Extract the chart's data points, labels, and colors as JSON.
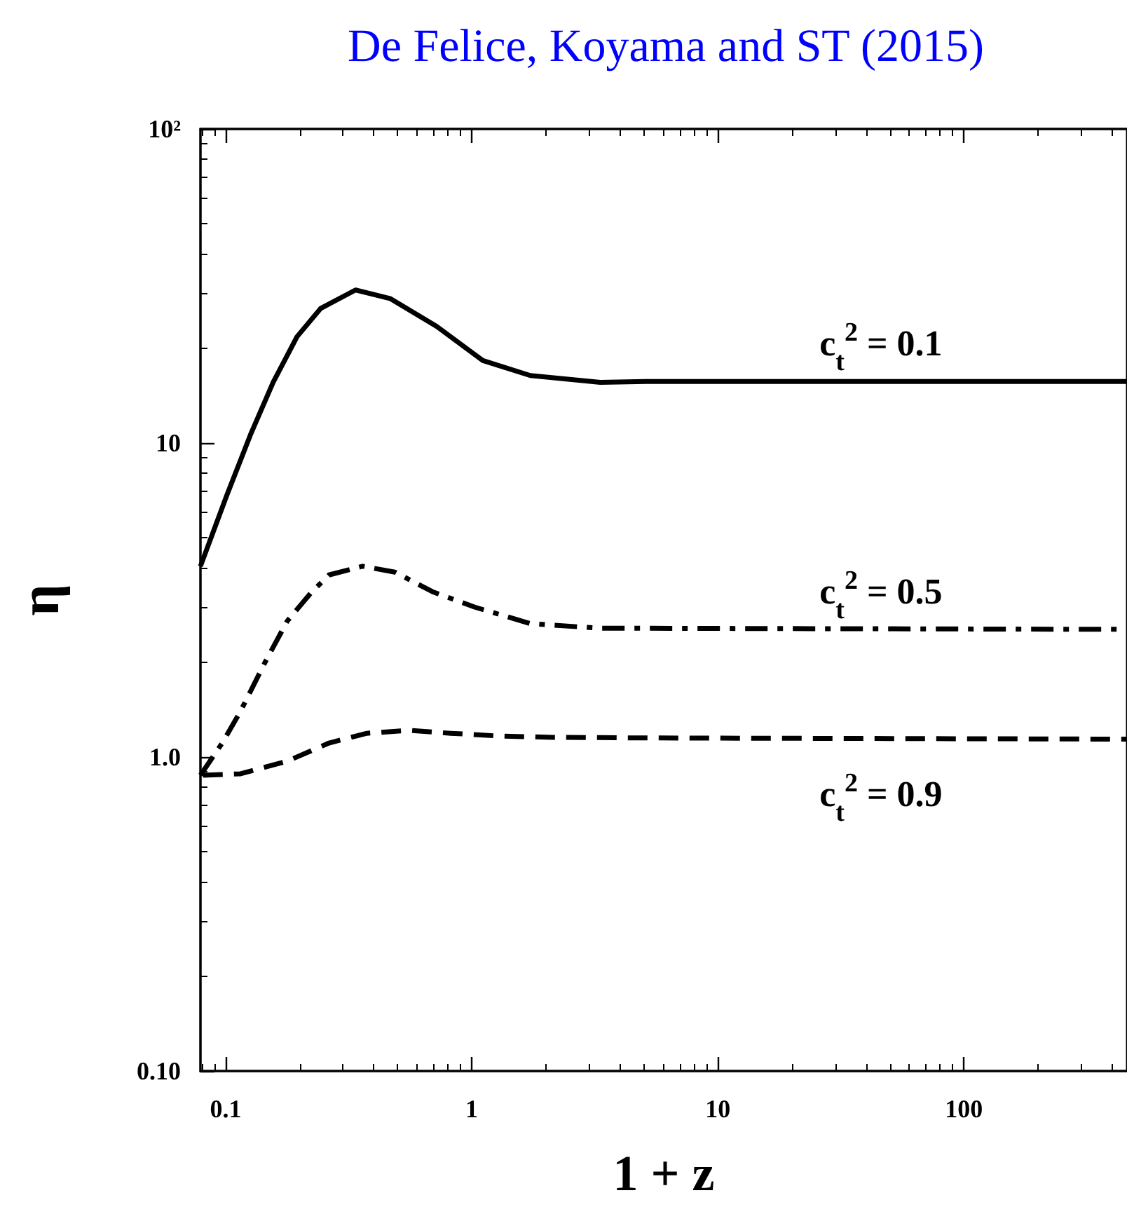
{
  "chart_data": {
    "type": "line",
    "title": "De Felice, Koyama and ST (2015)",
    "xlabel": "1 + z",
    "ylabel": "η",
    "log": "xy",
    "grid": false,
    "legend": false,
    "marker": "none",
    "xlim": [
      0.079,
      460
    ],
    "xticks": [
      0.1,
      1,
      10,
      100
    ],
    "ylim": [
      0.1,
      100
    ],
    "yticks": [
      {
        "value": 0.1,
        "label": "0.10"
      },
      {
        "value": 1,
        "label": "1.0"
      },
      10,
      {
        "value": 100,
        "label": "10²"
      }
    ],
    "series": [
      {
        "name": "c$_{t}$$^{2}$ = 0.1",
        "color": "#000000",
        "line_style": "solid",
        "x": [
          0.079,
          0.101,
          0.126,
          0.156,
          0.195,
          0.243,
          0.337,
          0.468,
          0.721,
          1.11,
          1.73,
          3.33,
          5.1,
          32,
          460
        ],
        "values": [
          4.05,
          6.8,
          10.6,
          15.6,
          21.8,
          26.8,
          30.7,
          28.8,
          23.5,
          18.3,
          16.4,
          15.6,
          15.7,
          15.7,
          15.7
        ]
      },
      {
        "name": "c$_{t}$$^{2}$ = 0.5",
        "color": "#000000",
        "line_style": "dashdot",
        "x": [
          0.079,
          0.097,
          0.115,
          0.144,
          0.178,
          0.222,
          0.263,
          0.36,
          0.487,
          0.693,
          1.03,
          1.73,
          3.33,
          5.1,
          460
        ],
        "values": [
          0.875,
          1.11,
          1.4,
          1.99,
          2.71,
          3.33,
          3.8,
          4.05,
          3.88,
          3.36,
          3.0,
          2.66,
          2.57,
          2.57,
          2.55
        ]
      },
      {
        "name": "c$_{t}$$^{2}$ = 0.9",
        "color": "#000000",
        "line_style": "dashed",
        "x": [
          0.081,
          0.115,
          0.178,
          0.263,
          0.375,
          0.555,
          0.822,
          1.27,
          2.14,
          5.1,
          460
        ],
        "values": [
          0.875,
          0.884,
          0.97,
          1.108,
          1.19,
          1.216,
          1.19,
          1.167,
          1.155,
          1.15,
          1.14
        ]
      }
    ]
  }
}
